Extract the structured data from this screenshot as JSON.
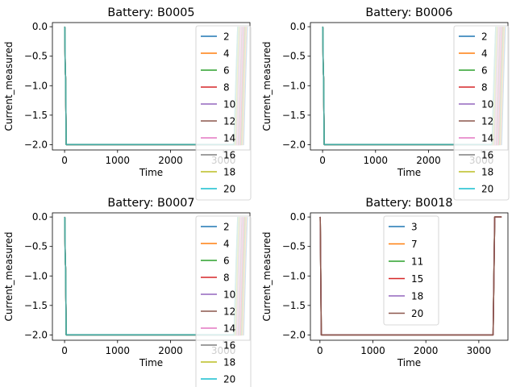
{
  "chart_data": [
    {
      "type": "line",
      "title": "Battery: B0005",
      "xlabel": "Time",
      "ylabel": "Current_measured",
      "xlim": [
        -230,
        3500
      ],
      "ylim": [
        -2.09,
        0.07
      ],
      "xticks": [
        0,
        1000,
        2000,
        3000
      ],
      "xtick_labels": [
        "0",
        "1000",
        "2000",
        "3000"
      ],
      "yticks": [
        0.0,
        -0.5,
        -1.0,
        -1.5,
        -2.0
      ],
      "ytick_labels": [
        "0.0",
        "−0.5",
        "−1.0",
        "−1.5",
        "−2.0"
      ],
      "grid": false,
      "legend_position": "upper-right",
      "series": [
        {
          "name": "2",
          "color": "#1f77b4",
          "x": [
            0,
            5,
            10,
            20,
            30,
            35,
            3380,
            3420,
            3450
          ],
          "y": [
            0.0,
            -0.01,
            -0.6,
            -0.9,
            -2.0,
            -2.0,
            -2.0,
            -0.8,
            0.0
          ]
        },
        {
          "name": "4",
          "color": "#ff7f0e",
          "x": [
            0,
            5,
            10,
            20,
            30,
            35,
            3360,
            3400,
            3430
          ],
          "y": [
            0.0,
            -0.01,
            -0.6,
            -0.9,
            -2.0,
            -2.0,
            -2.0,
            -0.8,
            0.0
          ]
        },
        {
          "name": "6",
          "color": "#2ca02c",
          "x": [
            0,
            5,
            10,
            20,
            30,
            35,
            3340,
            3380,
            3410
          ],
          "y": [
            0.0,
            -0.01,
            -0.6,
            -0.9,
            -2.0,
            -2.0,
            -2.0,
            -0.8,
            0.0
          ]
        },
        {
          "name": "8",
          "color": "#d62728",
          "x": [
            0,
            5,
            10,
            20,
            30,
            35,
            3320,
            3360,
            3390
          ],
          "y": [
            0.0,
            -0.01,
            -0.6,
            -0.9,
            -2.0,
            -2.0,
            -2.0,
            -0.8,
            0.0
          ]
        },
        {
          "name": "10",
          "color": "#9467bd",
          "x": [
            0,
            5,
            10,
            20,
            30,
            35,
            3300,
            3340,
            3370
          ],
          "y": [
            0.0,
            -0.01,
            -0.6,
            -0.9,
            -2.0,
            -2.0,
            -2.0,
            -0.8,
            0.0
          ]
        },
        {
          "name": "12",
          "color": "#8c564b",
          "x": [
            0,
            5,
            10,
            20,
            30,
            35,
            3280,
            3320,
            3350
          ],
          "y": [
            0.0,
            -0.01,
            -0.6,
            -0.9,
            -2.0,
            -2.0,
            -2.0,
            -0.8,
            0.0
          ]
        },
        {
          "name": "14",
          "color": "#e377c2",
          "x": [
            0,
            5,
            10,
            20,
            30,
            35,
            3260,
            3300,
            3330
          ],
          "y": [
            0.0,
            -0.01,
            -0.6,
            -0.9,
            -2.0,
            -2.0,
            -2.0,
            -0.8,
            0.0
          ]
        },
        {
          "name": "16",
          "color": "#7f7f7f",
          "x": [
            0,
            5,
            10,
            20,
            30,
            35,
            3240,
            3280,
            3310
          ],
          "y": [
            0.0,
            -0.01,
            -0.6,
            -0.9,
            -2.0,
            -2.0,
            -2.0,
            -0.8,
            0.0
          ]
        },
        {
          "name": "18",
          "color": "#bcbd22",
          "x": [
            0,
            5,
            10,
            20,
            30,
            35,
            3220,
            3260,
            3290
          ],
          "y": [
            0.0,
            -0.01,
            -0.6,
            -0.9,
            -2.0,
            -2.0,
            -2.0,
            -0.8,
            0.0
          ]
        },
        {
          "name": "20",
          "color": "#17becf",
          "x": [
            0,
            5,
            10,
            20,
            30,
            35,
            3200,
            3240,
            3270
          ],
          "y": [
            0.0,
            -0.01,
            -0.6,
            -0.9,
            -2.0,
            -2.0,
            -2.0,
            -0.8,
            0.0
          ]
        },
        {
          "name": "",
          "color": "#4aa89e",
          "x": [
            0,
            5,
            10,
            20,
            30,
            35,
            3200,
            3240,
            3270
          ],
          "y": [
            0.0,
            -0.01,
            -0.6,
            -0.9,
            -1.995,
            -1.995,
            -1.995,
            -0.8,
            0.0
          ]
        }
      ]
    },
    {
      "type": "line",
      "title": "Battery: B0006",
      "xlabel": "Time",
      "ylabel": "Current_measured",
      "xlim": [
        -230,
        3500
      ],
      "ylim": [
        -2.09,
        0.07
      ],
      "xticks": [
        0,
        1000,
        2000,
        3000
      ],
      "xtick_labels": [
        "0",
        "1000",
        "2000",
        "3000"
      ],
      "yticks": [
        0.0,
        -0.5,
        -1.0,
        -1.5,
        -2.0
      ],
      "ytick_labels": [
        "0.0",
        "−0.5",
        "−1.0",
        "−1.5",
        "−2.0"
      ],
      "grid": false,
      "legend_position": "upper-right",
      "series": [
        {
          "name": "2",
          "color": "#1f77b4",
          "x": [
            0,
            5,
            10,
            20,
            30,
            35,
            3380,
            3420,
            3450
          ],
          "y": [
            0.0,
            -0.01,
            -0.6,
            -0.9,
            -2.0,
            -2.0,
            -2.0,
            -0.8,
            0.0
          ]
        },
        {
          "name": "4",
          "color": "#ff7f0e",
          "x": [
            0,
            5,
            10,
            20,
            30,
            35,
            3360,
            3400,
            3430
          ],
          "y": [
            0.0,
            -0.01,
            -0.6,
            -0.9,
            -2.0,
            -2.0,
            -2.0,
            -0.8,
            0.0
          ]
        },
        {
          "name": "6",
          "color": "#2ca02c",
          "x": [
            0,
            5,
            10,
            20,
            30,
            35,
            3340,
            3380,
            3410
          ],
          "y": [
            0.0,
            -0.01,
            -0.6,
            -0.9,
            -2.0,
            -2.0,
            -2.0,
            -0.8,
            0.0
          ]
        },
        {
          "name": "8",
          "color": "#d62728",
          "x": [
            0,
            5,
            10,
            20,
            30,
            35,
            3320,
            3360,
            3390
          ],
          "y": [
            0.0,
            -0.01,
            -0.6,
            -0.9,
            -2.0,
            -2.0,
            -2.0,
            -0.8,
            0.0
          ]
        },
        {
          "name": "10",
          "color": "#9467bd",
          "x": [
            0,
            5,
            10,
            20,
            30,
            35,
            3300,
            3340,
            3370
          ],
          "y": [
            0.0,
            -0.01,
            -0.6,
            -0.9,
            -2.0,
            -2.0,
            -2.0,
            -0.8,
            0.0
          ]
        },
        {
          "name": "12",
          "color": "#8c564b",
          "x": [
            0,
            5,
            10,
            20,
            30,
            35,
            3280,
            3320,
            3350
          ],
          "y": [
            0.0,
            -0.01,
            -0.6,
            -0.9,
            -2.0,
            -2.0,
            -2.0,
            -0.8,
            0.0
          ]
        },
        {
          "name": "14",
          "color": "#e377c2",
          "x": [
            0,
            5,
            10,
            20,
            30,
            35,
            3260,
            3300,
            3330
          ],
          "y": [
            0.0,
            -0.01,
            -0.6,
            -0.9,
            -2.0,
            -2.0,
            -2.0,
            -0.8,
            0.0
          ]
        },
        {
          "name": "16",
          "color": "#7f7f7f",
          "x": [
            0,
            5,
            10,
            20,
            30,
            35,
            3240,
            3280,
            3310
          ],
          "y": [
            0.0,
            -0.01,
            -0.6,
            -0.9,
            -2.0,
            -2.0,
            -2.0,
            -0.8,
            0.0
          ]
        },
        {
          "name": "18",
          "color": "#bcbd22",
          "x": [
            0,
            5,
            10,
            20,
            30,
            35,
            3220,
            3260,
            3290
          ],
          "y": [
            0.0,
            -0.01,
            -0.6,
            -0.9,
            -2.0,
            -2.0,
            -2.0,
            -0.8,
            0.0
          ]
        },
        {
          "name": "20",
          "color": "#17becf",
          "x": [
            0,
            5,
            10,
            20,
            30,
            35,
            3200,
            3240,
            3270
          ],
          "y": [
            0.0,
            -0.01,
            -0.6,
            -0.9,
            -2.0,
            -2.0,
            -2.0,
            -0.8,
            0.0
          ]
        },
        {
          "name": "",
          "color": "#4aa89e",
          "x": [
            0,
            5,
            10,
            20,
            30,
            35,
            3200,
            3240,
            3270
          ],
          "y": [
            0.0,
            -0.01,
            -0.6,
            -0.9,
            -1.995,
            -1.995,
            -1.995,
            -0.8,
            0.0
          ]
        }
      ]
    },
    {
      "type": "line",
      "title": "Battery: B0007",
      "xlabel": "Time",
      "ylabel": "Current_measured",
      "xlim": [
        -230,
        3500
      ],
      "ylim": [
        -2.09,
        0.07
      ],
      "xticks": [
        0,
        1000,
        2000,
        3000
      ],
      "xtick_labels": [
        "0",
        "1000",
        "2000",
        "3000"
      ],
      "yticks": [
        0.0,
        -0.5,
        -1.0,
        -1.5,
        -2.0
      ],
      "ytick_labels": [
        "0.0",
        "−0.5",
        "−1.0",
        "−1.5",
        "−2.0"
      ],
      "grid": false,
      "legend_position": "upper-right",
      "series": [
        {
          "name": "2",
          "color": "#1f77b4",
          "x": [
            0,
            5,
            10,
            20,
            30,
            35,
            3380,
            3420,
            3450
          ],
          "y": [
            0.0,
            -0.01,
            -0.6,
            -0.9,
            -2.0,
            -2.0,
            -2.0,
            -0.8,
            0.0
          ]
        },
        {
          "name": "4",
          "color": "#ff7f0e",
          "x": [
            0,
            5,
            10,
            20,
            30,
            35,
            3360,
            3400,
            3430
          ],
          "y": [
            0.0,
            -0.01,
            -0.6,
            -0.9,
            -2.0,
            -2.0,
            -2.0,
            -0.8,
            0.0
          ]
        },
        {
          "name": "6",
          "color": "#2ca02c",
          "x": [
            0,
            5,
            10,
            20,
            30,
            35,
            3340,
            3380,
            3410
          ],
          "y": [
            0.0,
            -0.01,
            -0.6,
            -0.9,
            -2.0,
            -2.0,
            -2.0,
            -0.8,
            0.0
          ]
        },
        {
          "name": "8",
          "color": "#d62728",
          "x": [
            0,
            5,
            10,
            20,
            30,
            35,
            3320,
            3360,
            3390
          ],
          "y": [
            0.0,
            -0.01,
            -0.6,
            -0.9,
            -2.0,
            -2.0,
            -2.0,
            -0.8,
            0.0
          ]
        },
        {
          "name": "10",
          "color": "#9467bd",
          "x": [
            0,
            5,
            10,
            20,
            30,
            35,
            3300,
            3340,
            3370
          ],
          "y": [
            0.0,
            -0.01,
            -0.6,
            -0.9,
            -2.0,
            -2.0,
            -2.0,
            -0.8,
            0.0
          ]
        },
        {
          "name": "12",
          "color": "#8c564b",
          "x": [
            0,
            5,
            10,
            20,
            30,
            35,
            3280,
            3320,
            3350
          ],
          "y": [
            0.0,
            -0.01,
            -0.6,
            -0.9,
            -2.0,
            -2.0,
            -2.0,
            -0.8,
            0.0
          ]
        },
        {
          "name": "14",
          "color": "#e377c2",
          "x": [
            0,
            5,
            10,
            20,
            30,
            35,
            3260,
            3300,
            3330
          ],
          "y": [
            0.0,
            -0.01,
            -0.6,
            -0.9,
            -2.0,
            -2.0,
            -2.0,
            -0.8,
            0.0
          ]
        },
        {
          "name": "16",
          "color": "#7f7f7f",
          "x": [
            0,
            5,
            10,
            20,
            30,
            35,
            3240,
            3280,
            3310
          ],
          "y": [
            0.0,
            -0.01,
            -0.6,
            -0.9,
            -2.0,
            -2.0,
            -2.0,
            -0.8,
            0.0
          ]
        },
        {
          "name": "18",
          "color": "#bcbd22",
          "x": [
            0,
            5,
            10,
            20,
            30,
            35,
            3220,
            3260,
            3290
          ],
          "y": [
            0.0,
            -0.01,
            -0.6,
            -0.9,
            -2.0,
            -2.0,
            -2.0,
            -0.8,
            0.0
          ]
        },
        {
          "name": "20",
          "color": "#17becf",
          "x": [
            0,
            5,
            10,
            20,
            30,
            35,
            3200,
            3240,
            3270
          ],
          "y": [
            0.0,
            -0.01,
            -0.6,
            -0.9,
            -2.0,
            -2.0,
            -2.0,
            -0.8,
            0.0
          ]
        },
        {
          "name": "",
          "color": "#4aa89e",
          "x": [
            0,
            5,
            10,
            20,
            30,
            35,
            3200,
            3240,
            3270
          ],
          "y": [
            0.0,
            -0.01,
            -0.6,
            -0.9,
            -1.995,
            -1.995,
            -1.995,
            -0.8,
            0.0
          ]
        }
      ]
    },
    {
      "type": "line",
      "title": "Battery: B0018",
      "xlabel": "Time",
      "ylabel": "Current_measured",
      "xlim": [
        -180,
        3550
      ],
      "ylim": [
        -2.09,
        0.07
      ],
      "xticks": [
        0,
        1000,
        2000,
        3000
      ],
      "xtick_labels": [
        "0",
        "1000",
        "2000",
        "3000"
      ],
      "yticks": [
        0.0,
        -0.5,
        -1.0,
        -1.5,
        -2.0
      ],
      "ytick_labels": [
        "0.0",
        "−0.5",
        "−1.0",
        "−1.5",
        "−2.0"
      ],
      "grid": false,
      "legend_position": "upper-center",
      "series": [
        {
          "name": "3",
          "color": "#1f77b4",
          "x": [
            0,
            5,
            25,
            40,
            3270,
            3300,
            3330,
            3430
          ],
          "y": [
            0.0,
            -0.01,
            -2.0,
            -2.0,
            -2.0,
            0.0,
            0.0,
            0.0
          ]
        },
        {
          "name": "7",
          "color": "#ff7f0e",
          "x": [
            0,
            5,
            25,
            40,
            3270,
            3300,
            3330,
            3430
          ],
          "y": [
            0.0,
            -0.01,
            -2.0,
            -2.0,
            -2.0,
            0.0,
            0.0,
            0.0
          ]
        },
        {
          "name": "11",
          "color": "#2ca02c",
          "x": [
            0,
            5,
            25,
            40,
            3270,
            3300,
            3330,
            3430
          ],
          "y": [
            0.0,
            -0.01,
            -2.0,
            -2.0,
            -2.0,
            0.0,
            0.0,
            0.0
          ]
        },
        {
          "name": "15",
          "color": "#d62728",
          "x": [
            0,
            5,
            25,
            40,
            3270,
            3300,
            3330,
            3430
          ],
          "y": [
            0.0,
            -0.01,
            -2.0,
            -2.0,
            -2.0,
            0.0,
            0.0,
            0.0
          ]
        },
        {
          "name": "18",
          "color": "#9467bd",
          "x": [
            0,
            5,
            25,
            40,
            3270,
            3300,
            3330,
            3430
          ],
          "y": [
            0.0,
            -0.01,
            -2.0,
            -2.0,
            -2.0,
            0.0,
            0.0,
            0.0
          ]
        },
        {
          "name": "20",
          "color": "#8c564b",
          "x": [
            0,
            5,
            25,
            40,
            3270,
            3300,
            3330,
            3430
          ],
          "y": [
            0.0,
            -0.01,
            -2.0,
            -2.0,
            -2.0,
            0.0,
            0.0,
            0.0
          ]
        }
      ]
    }
  ]
}
